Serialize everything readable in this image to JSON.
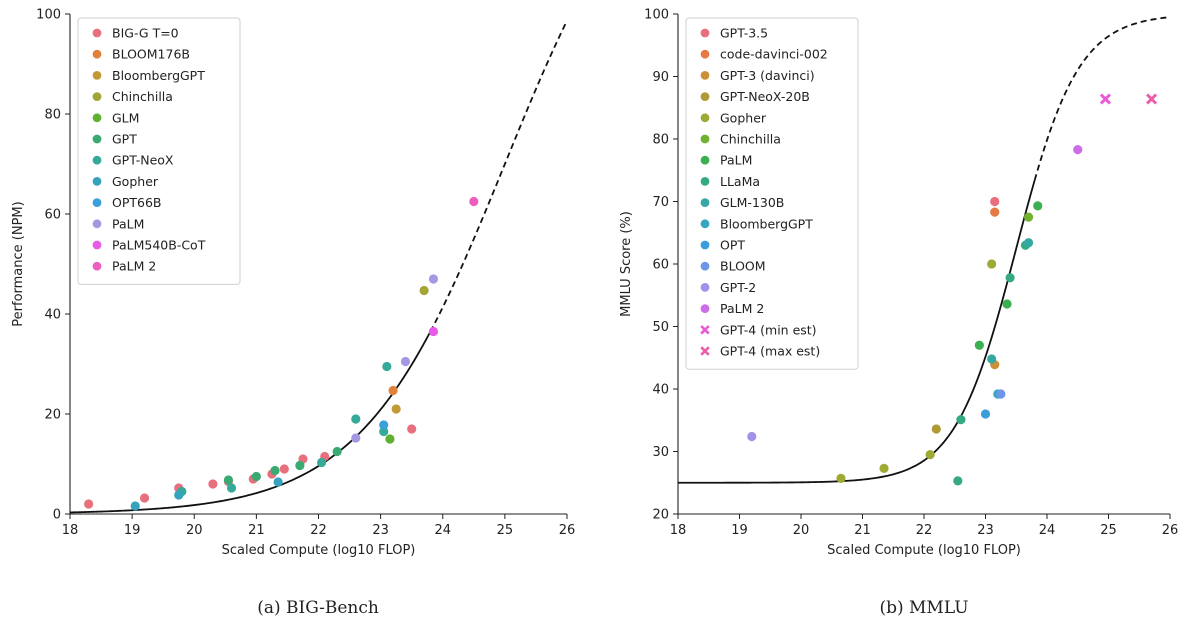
{
  "chart_data": [
    {
      "type": "scatter",
      "caption": "(a) BIG-Bench",
      "xlabel": "Scaled Compute (log10 FLOP)",
      "ylabel": "Performance (NPM)",
      "xlim": [
        18,
        26
      ],
      "ylim": [
        0,
        100
      ],
      "xticks": [
        "18",
        "19",
        "20",
        "21",
        "22",
        "23",
        "24",
        "25",
        "26"
      ],
      "yticks": [
        "0",
        "20",
        "40",
        "60",
        "80",
        "100"
      ],
      "legend_position": "top-left",
      "fit_curve": {
        "style": "sigmoid",
        "solid_until_x": 23.8,
        "lower": 0,
        "upper": 140,
        "midpoint": 25.0,
        "slope": 0.87
      },
      "series": [
        {
          "name": "BIG-G T=0",
          "color": "#e8707e",
          "points": [
            [
              18.3,
              2
            ],
            [
              19.2,
              3.2
            ],
            [
              19.75,
              5.2
            ],
            [
              20.3,
              6
            ],
            [
              20.55,
              6.5
            ],
            [
              20.95,
              7
            ],
            [
              21.25,
              8
            ],
            [
              21.45,
              9
            ],
            [
              21.75,
              11
            ],
            [
              22.1,
              11.5
            ],
            [
              23.5,
              17
            ]
          ]
        },
        {
          "name": "BLOOM176B",
          "color": "#e0823a",
          "points": [
            [
              23.2,
              24.7
            ]
          ]
        },
        {
          "name": "BloombergGPT",
          "color": "#c29a35",
          "points": [
            [
              23.25,
              21
            ]
          ]
        },
        {
          "name": "Chinchilla",
          "color": "#a3a535",
          "points": [
            [
              23.7,
              44.7
            ]
          ]
        },
        {
          "name": "GLM",
          "color": "#5fb030",
          "points": [
            [
              23.15,
              15
            ]
          ]
        },
        {
          "name": "GPT",
          "color": "#3aaa72",
          "points": [
            [
              20.55,
              6.8
            ],
            [
              21.0,
              7.5
            ],
            [
              21.3,
              8.7
            ],
            [
              21.7,
              9.7
            ],
            [
              22.3,
              12.5
            ]
          ]
        },
        {
          "name": "GPT-NeoX",
          "color": "#35aa98",
          "points": [
            [
              19.8,
              4.5
            ],
            [
              20.6,
              5.2
            ],
            [
              22.05,
              10.3
            ],
            [
              22.6,
              19
            ],
            [
              23.05,
              16.5
            ],
            [
              23.1,
              29.5
            ]
          ]
        },
        {
          "name": "Gopher",
          "color": "#35a3bd",
          "points": [
            [
              19.05,
              1.6
            ],
            [
              19.75,
              3.8
            ],
            [
              21.35,
              6.4
            ]
          ]
        },
        {
          "name": "OPT66B",
          "color": "#3aa0dc",
          "points": [
            [
              23.05,
              17.8
            ]
          ]
        },
        {
          "name": "PaLM",
          "color": "#a598e3",
          "points": [
            [
              22.6,
              15.2
            ],
            [
              23.4,
              30.5
            ],
            [
              23.85,
              47
            ]
          ]
        },
        {
          "name": "PaLM540B-CoT",
          "color": "#e85ae8",
          "points": [
            [
              23.85,
              36.5
            ]
          ]
        },
        {
          "name": "PaLM 2",
          "color": "#ec5fbf",
          "points": [
            [
              24.5,
              62.5
            ]
          ]
        }
      ]
    },
    {
      "type": "scatter",
      "caption": "(b) MMLU",
      "xlabel": "Scaled Compute (log10 FLOP)",
      "ylabel": "MMLU Score (%)",
      "xlim": [
        18,
        26
      ],
      "ylim": [
        20,
        100
      ],
      "xticks": [
        "18",
        "19",
        "20",
        "21",
        "22",
        "23",
        "24",
        "25",
        "26"
      ],
      "yticks": [
        "20",
        "30",
        "40",
        "50",
        "60",
        "70",
        "80",
        "90",
        "100"
      ],
      "legend_position": "top-left",
      "fit_curve": {
        "style": "sigmoid",
        "solid_until_x": 23.8,
        "lower": 25,
        "upper": 100,
        "midpoint": 23.5,
        "slope": 2.0
      },
      "series": [
        {
          "name": "GPT-3.5",
          "color": "#e8707e",
          "marker": "circle",
          "points": [
            [
              23.15,
              70
            ]
          ]
        },
        {
          "name": "code-davinci-002",
          "color": "#e67a45",
          "marker": "circle",
          "points": [
            [
              23.15,
              68.3
            ]
          ]
        },
        {
          "name": "GPT-3 (davinci)",
          "color": "#cc9138",
          "marker": "circle",
          "points": [
            [
              23.15,
              43.9
            ]
          ]
        },
        {
          "name": "GPT-NeoX-20B",
          "color": "#b09a35",
          "marker": "circle",
          "points": [
            [
              22.2,
              33.6
            ]
          ]
        },
        {
          "name": "Gopher",
          "color": "#9faa35",
          "marker": "circle",
          "points": [
            [
              20.65,
              25.7
            ],
            [
              21.35,
              27.3
            ],
            [
              22.1,
              29.5
            ],
            [
              23.1,
              60
            ]
          ]
        },
        {
          "name": "Chinchilla",
          "color": "#72b030",
          "marker": "circle",
          "points": [
            [
              23.7,
              67.5
            ]
          ]
        },
        {
          "name": "PaLM",
          "color": "#3cb050",
          "marker": "circle",
          "points": [
            [
              22.9,
              47
            ],
            [
              23.35,
              53.6
            ],
            [
              23.85,
              69.3
            ]
          ]
        },
        {
          "name": "LLaMa",
          "color": "#35aa82",
          "marker": "circle",
          "points": [
            [
              22.55,
              25.3
            ],
            [
              22.6,
              35.1
            ],
            [
              23.4,
              57.8
            ],
            [
              23.65,
              63
            ]
          ]
        },
        {
          "name": "GLM-130B",
          "color": "#35a8a3",
          "marker": "circle",
          "points": [
            [
              23.1,
              44.8
            ],
            [
              23.7,
              63.4
            ]
          ]
        },
        {
          "name": "BloombergGPT",
          "color": "#35a5c0",
          "marker": "circle",
          "points": [
            [
              23.2,
              39.2
            ]
          ]
        },
        {
          "name": "OPT",
          "color": "#3a9edc",
          "marker": "circle",
          "points": [
            [
              23.0,
              36
            ]
          ]
        },
        {
          "name": "BLOOM",
          "color": "#6f95e8",
          "marker": "circle",
          "points": [
            [
              23.25,
              39.2
            ]
          ]
        },
        {
          "name": "GPT-2",
          "color": "#a390e8",
          "marker": "circle",
          "points": [
            [
              19.2,
              32.4
            ]
          ]
        },
        {
          "name": "PaLM 2",
          "color": "#cc6ee8",
          "marker": "circle",
          "points": [
            [
              24.5,
              78.3
            ]
          ]
        },
        {
          "name": "GPT-4 (min est)",
          "color": "#e85ad5",
          "marker": "x",
          "points": [
            [
              24.95,
              86.4
            ]
          ]
        },
        {
          "name": "GPT-4 (max est)",
          "color": "#ec5fa8",
          "marker": "x",
          "points": [
            [
              25.7,
              86.4
            ]
          ]
        }
      ]
    }
  ]
}
